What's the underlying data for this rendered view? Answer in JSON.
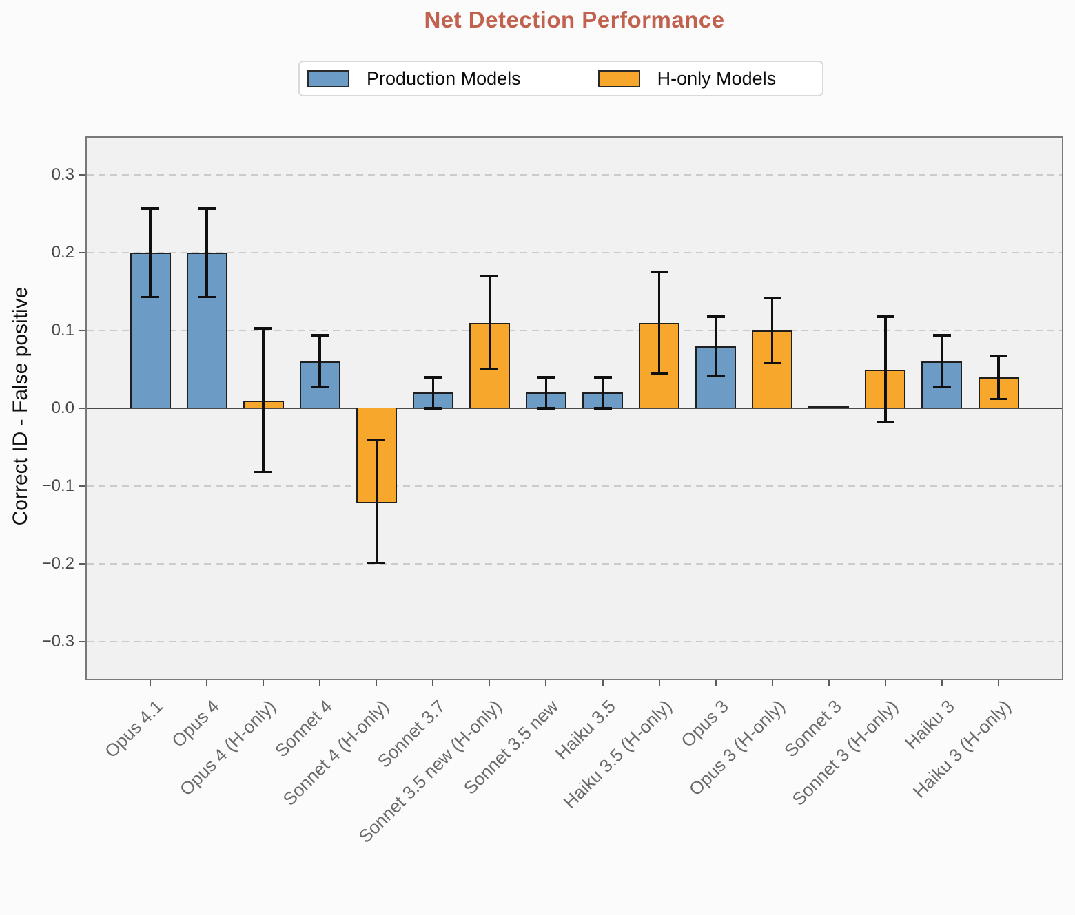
{
  "figure": {
    "title": "Net Detection Performance",
    "title_color": "#C2614E"
  },
  "legend": {
    "items": [
      {
        "label": "Production Models",
        "color": "#6C9BC5"
      },
      {
        "label": "H-only Models",
        "color": "#F7A72C"
      }
    ]
  },
  "chart_data": {
    "type": "bar",
    "title": "Net Detection Performance",
    "xlabel": "",
    "ylabel": "Correct ID - False positive",
    "ylim": [
      -0.35,
      0.35
    ],
    "yticks": [
      0.3,
      0.2,
      0.1,
      0.0,
      -0.1,
      -0.2,
      -0.3
    ],
    "grid": "horizontal dashed gridlines at each 0.1 tick, solid dark line at 0",
    "legend_position": "top center, outside plot",
    "colors": {
      "production": "#6C9BC5",
      "h_only": "#F7A72C",
      "bar_edge": "#1f1f1f",
      "error_bar": "#101010",
      "title": "#C2614E",
      "plot_background": "#f1f1f2"
    },
    "categories": [
      "Opus 4.1",
      "Opus 4",
      "Opus 4 (H-only)",
      "Sonnet 4",
      "Sonnet 4 (H-only)",
      "Sonnet 3.7",
      "Sonnet 3.5 new (H-only)",
      "Sonnet 3.5 new",
      "Haiku 3.5",
      "Haiku 3.5 (H-only)",
      "Opus 3",
      "Opus 3 (H-only)",
      "Sonnet 3",
      "Sonnet 3 (H-only)",
      "Haiku 3",
      "Haiku 3 (H-only)"
    ],
    "bars": [
      {
        "label": "Opus 4.1",
        "group": "Production Models",
        "value": 0.2,
        "ci": [
          0.143,
          0.257
        ]
      },
      {
        "label": "Opus 4",
        "group": "Production Models",
        "value": 0.2,
        "ci": [
          0.143,
          0.257
        ]
      },
      {
        "label": "Opus 4 (H-only)",
        "group": "H-only Models",
        "value": 0.01,
        "ci": [
          -0.082,
          0.103
        ]
      },
      {
        "label": "Sonnet 4",
        "group": "Production Models",
        "value": 0.06,
        "ci": [
          0.027,
          0.094
        ]
      },
      {
        "label": "Sonnet 4 (H-only)",
        "group": "H-only Models",
        "value": -0.12,
        "ci": [
          -0.199,
          -0.041
        ]
      },
      {
        "label": "Sonnet 3.7",
        "group": "Production Models",
        "value": 0.02,
        "ci": [
          0.0,
          0.04
        ]
      },
      {
        "label": "Sonnet 3.5 new (H-only)",
        "group": "H-only Models",
        "value": 0.11,
        "ci": [
          0.05,
          0.17
        ]
      },
      {
        "label": "Sonnet 3.5 new",
        "group": "Production Models",
        "value": 0.02,
        "ci": [
          0.0,
          0.04
        ]
      },
      {
        "label": "Haiku 3.5",
        "group": "Production Models",
        "value": 0.02,
        "ci": [
          0.0,
          0.04
        ]
      },
      {
        "label": "Haiku 3.5 (H-only)",
        "group": "H-only Models",
        "value": 0.11,
        "ci": [
          0.045,
          0.175
        ]
      },
      {
        "label": "Opus 3",
        "group": "Production Models",
        "value": 0.08,
        "ci": [
          0.042,
          0.118
        ]
      },
      {
        "label": "Opus 3 (H-only)",
        "group": "H-only Models",
        "value": 0.1,
        "ci": [
          0.058,
          0.142
        ]
      },
      {
        "label": "Sonnet 3",
        "group": "Production Models",
        "value": 0.0,
        "ci": [
          0.0,
          0.0
        ]
      },
      {
        "label": "Sonnet 3 (H-only)",
        "group": "H-only Models",
        "value": 0.05,
        "ci": [
          -0.018,
          0.118
        ]
      },
      {
        "label": "Haiku 3",
        "group": "Production Models",
        "value": 0.06,
        "ci": [
          0.027,
          0.094
        ]
      },
      {
        "label": "Haiku 3 (H-only)",
        "group": "H-only Models",
        "value": 0.04,
        "ci": [
          0.012,
          0.068
        ]
      }
    ]
  }
}
